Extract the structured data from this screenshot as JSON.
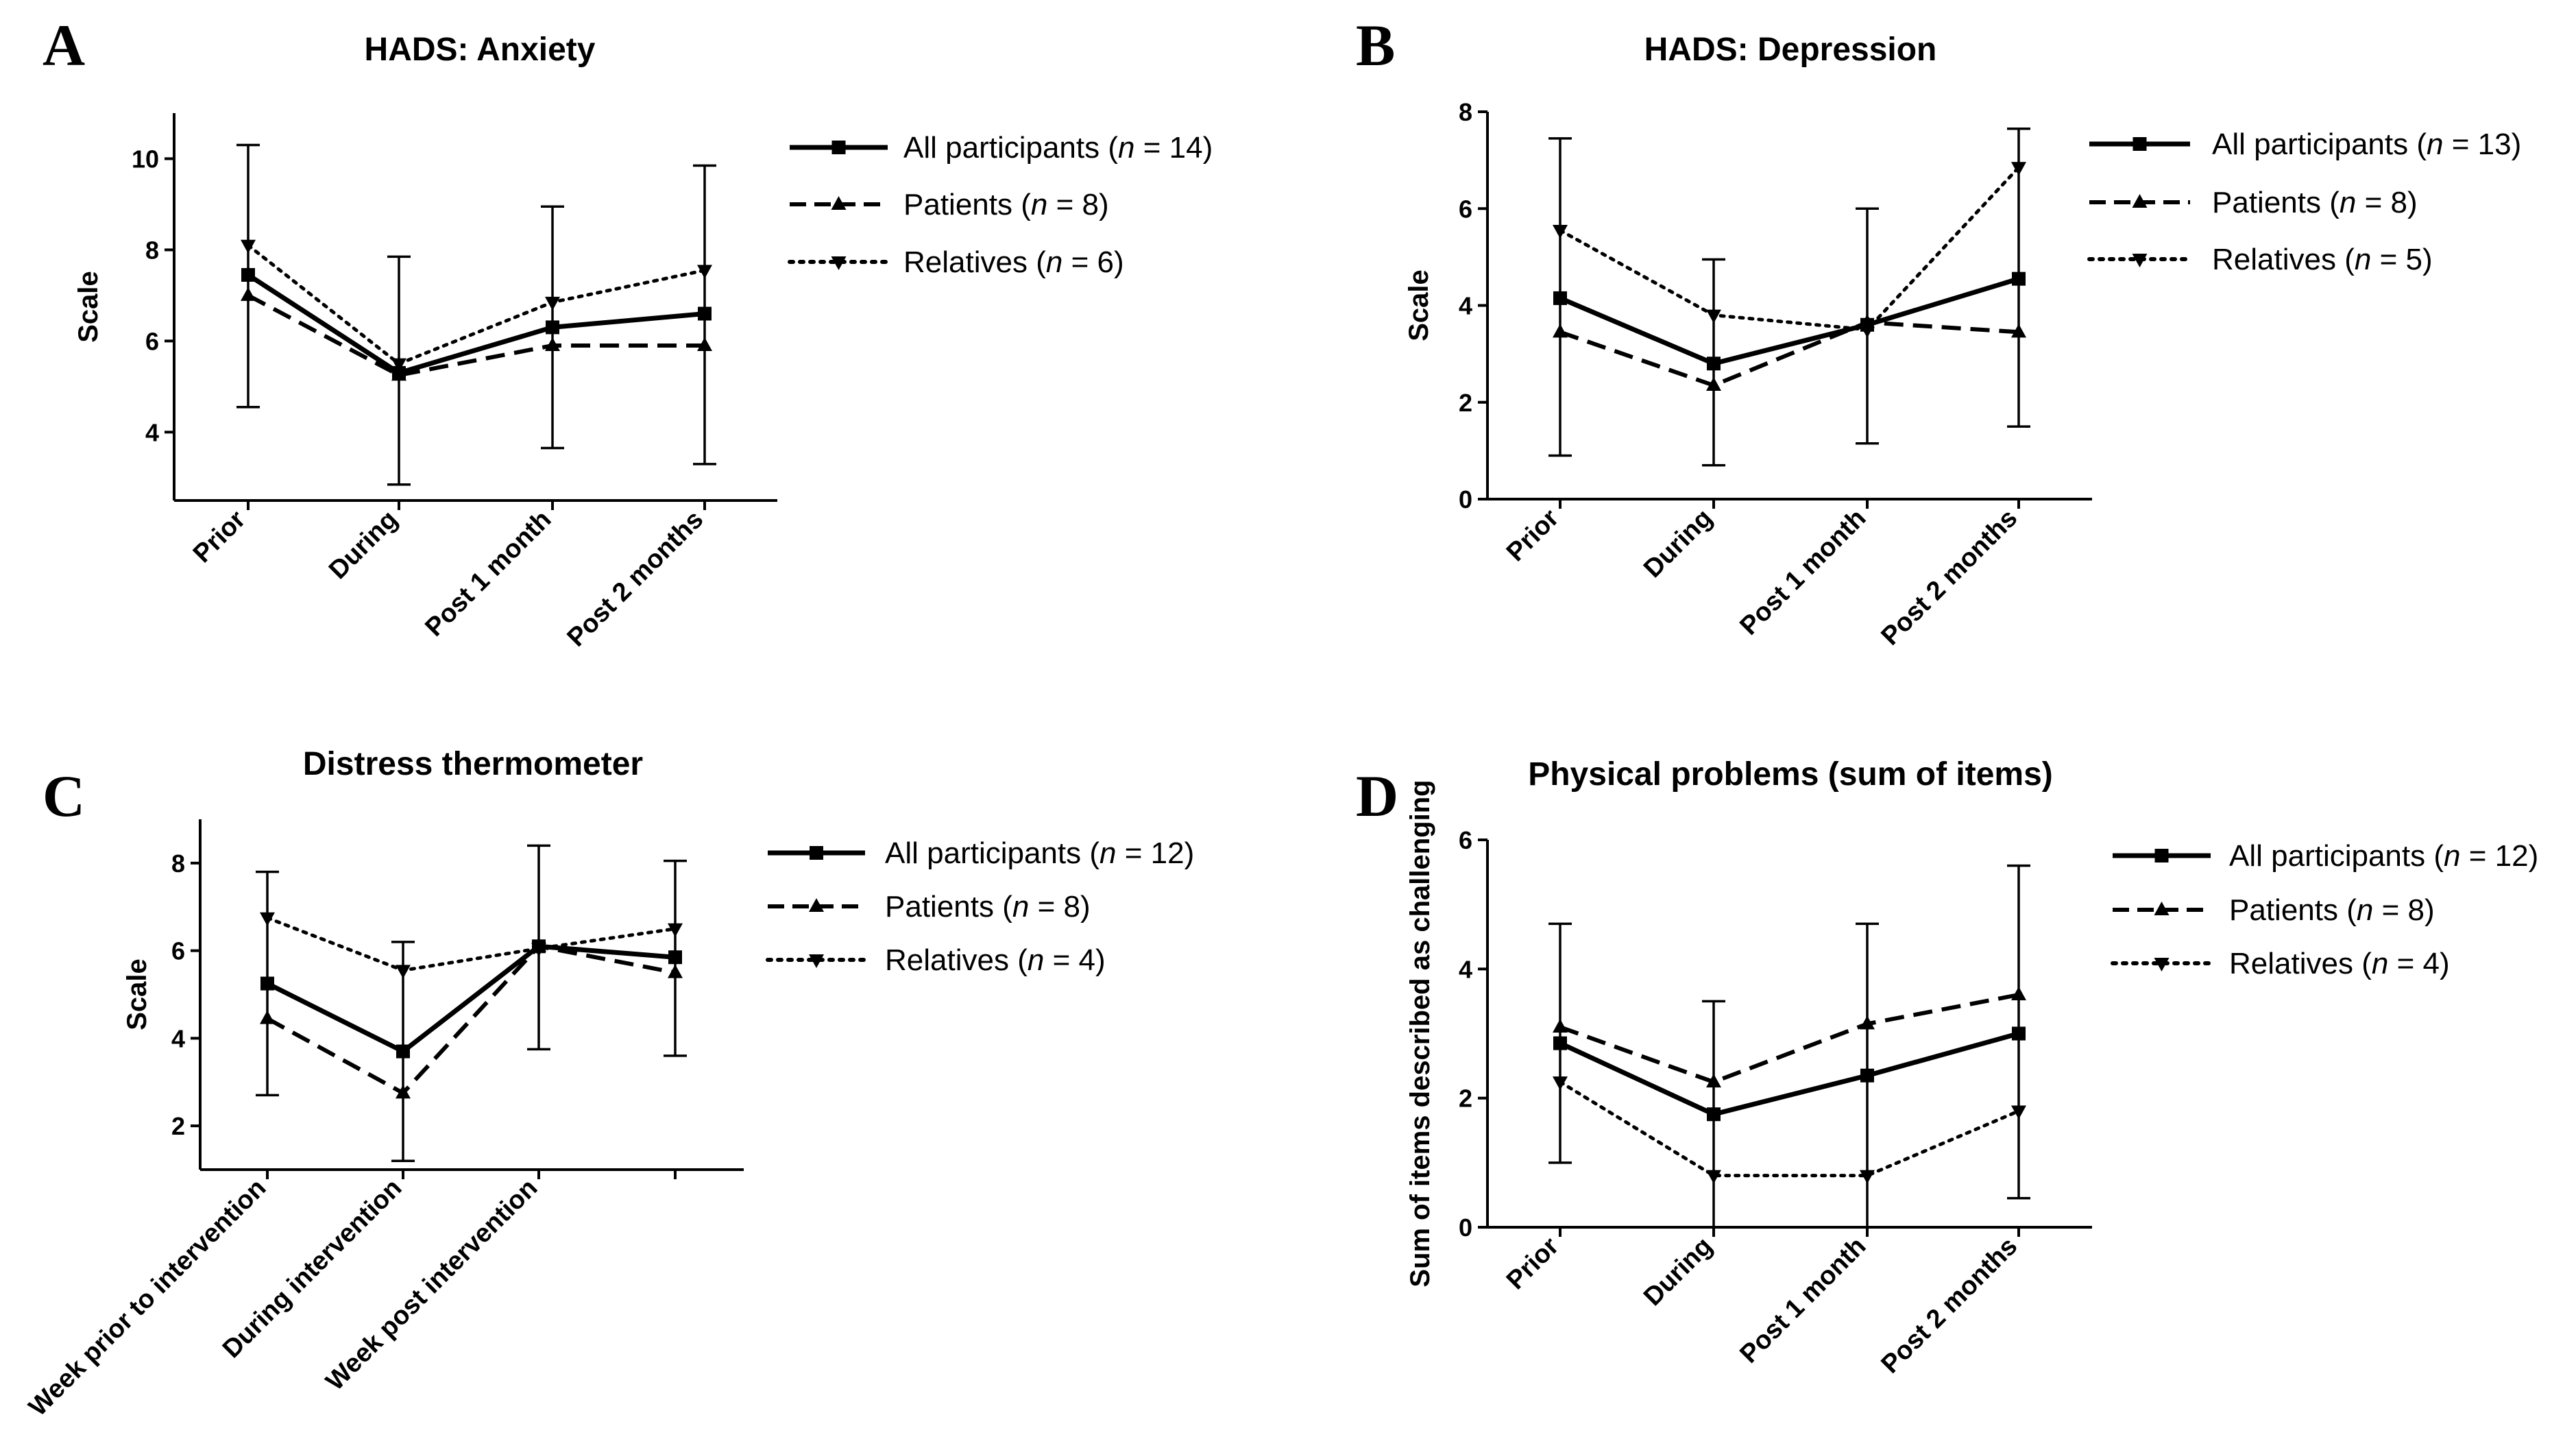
{
  "chart_data": [
    {
      "panel": "A",
      "type": "line",
      "title": "HADS: Anxiety",
      "xlabel": "",
      "ylabel": "Scale",
      "categories": [
        "Prior",
        "During",
        "Post 1 month",
        "Post 2 months"
      ],
      "ylim": [
        2.5,
        11
      ],
      "yticks": [
        4,
        6,
        8,
        10
      ],
      "series": [
        {
          "name": "All participants",
          "n": "14",
          "style": "solid",
          "marker": "square",
          "values": [
            7.45,
            5.3,
            6.3,
            6.6
          ]
        },
        {
          "name": "Patients",
          "n": "8",
          "style": "dashed",
          "marker": "triangle-up",
          "values": [
            7.0,
            5.25,
            5.9,
            5.9
          ]
        },
        {
          "name": "Relatives",
          "n": "6",
          "style": "dotted",
          "marker": "triangle-down",
          "values": [
            8.1,
            5.5,
            6.85,
            7.55
          ]
        }
      ],
      "error_bars": [
        {
          "low": 4.55,
          "high": 10.3
        },
        {
          "low": 2.85,
          "high": 7.85
        },
        {
          "low": 3.65,
          "high": 8.95
        },
        {
          "low": 3.3,
          "high": 9.85
        }
      ]
    },
    {
      "panel": "B",
      "type": "line",
      "title": "HADS: Depression",
      "xlabel": "",
      "ylabel": "Scale",
      "categories": [
        "Prior",
        "During",
        "Post 1 month",
        "Post 2 months"
      ],
      "ylim": [
        0,
        8
      ],
      "yticks": [
        0,
        2,
        4,
        6,
        8
      ],
      "series": [
        {
          "name": "All participants",
          "n": "13",
          "style": "solid",
          "marker": "square",
          "values": [
            4.15,
            2.8,
            3.6,
            4.55
          ]
        },
        {
          "name": "Patients",
          "n": "8",
          "style": "dashed",
          "marker": "triangle-up",
          "values": [
            3.45,
            2.35,
            3.65,
            3.45
          ]
        },
        {
          "name": "Relatives",
          "n": "5",
          "style": "dotted",
          "marker": "triangle-down",
          "values": [
            5.55,
            3.8,
            3.5,
            6.85
          ]
        }
      ],
      "error_bars": [
        {
          "low": 0.9,
          "high": 7.45
        },
        {
          "low": 0.7,
          "high": 4.95
        },
        {
          "low": 1.15,
          "high": 6.0
        },
        {
          "low": 1.5,
          "high": 7.65
        }
      ]
    },
    {
      "panel": "C",
      "type": "line",
      "title": "Distress thermometer",
      "xlabel": "",
      "ylabel": "Scale",
      "categories": [
        "Week prior to intervention",
        "During intervention",
        "Week post intervention",
        ""
      ],
      "ylim": [
        1,
        9
      ],
      "yticks": [
        2,
        4,
        6,
        8
      ],
      "series": [
        {
          "name": "All participants",
          "n": "12",
          "style": "solid",
          "marker": "square",
          "values": [
            5.25,
            3.7,
            6.1,
            5.85
          ]
        },
        {
          "name": "Patients",
          "n": "8",
          "style": "dashed",
          "marker": "triangle-up",
          "values": [
            4.45,
            2.75,
            6.1,
            5.5
          ]
        },
        {
          "name": "Relatives",
          "n": "4",
          "style": "dotted",
          "marker": "triangle-down",
          "values": [
            6.75,
            5.55,
            6.05,
            6.5
          ]
        }
      ],
      "error_bars": [
        {
          "low": 2.7,
          "high": 7.8
        },
        {
          "low": 1.2,
          "high": 6.2
        },
        {
          "low": 3.75,
          "high": 8.4
        },
        {
          "low": 3.6,
          "high": 8.05
        }
      ]
    },
    {
      "panel": "D",
      "type": "line",
      "title": "Physical problems (sum of items)",
      "xlabel": "",
      "ylabel": "Sum of items described as challenging",
      "categories": [
        "Prior",
        "During",
        "Post 1 month",
        "Post 2 months"
      ],
      "ylim": [
        0,
        6
      ],
      "yticks": [
        0,
        2,
        4,
        6
      ],
      "series": [
        {
          "name": "All participants",
          "n": "12",
          "style": "solid",
          "marker": "square",
          "values": [
            2.85,
            1.75,
            2.35,
            3.0
          ]
        },
        {
          "name": "Patients",
          "n": "8",
          "style": "dashed",
          "marker": "triangle-up",
          "values": [
            3.1,
            2.25,
            3.15,
            3.6
          ]
        },
        {
          "name": "Relatives",
          "n": "4",
          "style": "dotted",
          "marker": "triangle-down",
          "values": [
            2.25,
            0.8,
            0.8,
            1.8
          ]
        }
      ],
      "error_bars": [
        {
          "low": 1.0,
          "high": 4.7
        },
        {
          "low": 0.0,
          "high": 3.5
        },
        {
          "low": 0.0,
          "high": 4.7
        },
        {
          "low": 0.45,
          "high": 5.6
        }
      ]
    }
  ]
}
